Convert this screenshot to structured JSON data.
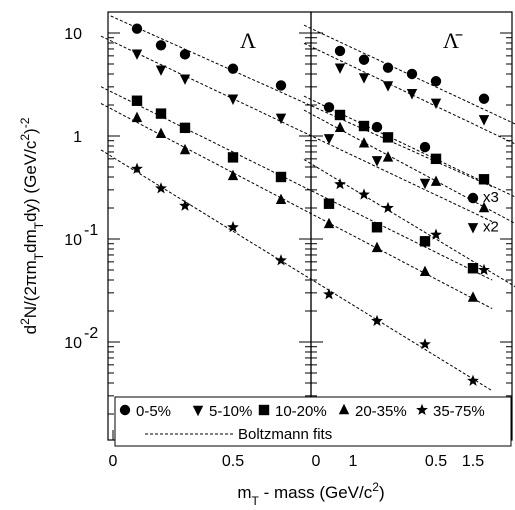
{
  "chart_data": {
    "type": "scatter",
    "xlabel": "m_T - mass (GeV/c^2)",
    "ylabel": "d^2N/(2πm_Tdm_Tdy) (GeV/c^2)^-2",
    "ylim": [
      0.0035,
      15
    ],
    "y_scale": "log",
    "x_ticks": [
      "0",
      "0.5",
      "1",
      "1.5"
    ],
    "y_ticks": [
      {
        "mantissa": "10",
        "exp": "",
        "value": 10
      },
      {
        "mantissa": "1",
        "exp": "",
        "value": 1
      },
      {
        "mantissa": "10",
        "exp": "-1",
        "value": 0.1
      },
      {
        "mantissa": "10",
        "exp": "-2",
        "value": 0.01
      }
    ],
    "legend": {
      "entries": [
        "0-5%",
        "5-10%",
        "10-20%",
        "20-35%",
        "35-75%"
      ],
      "fit_label": "Boltzmann fits",
      "placement": "bottom"
    },
    "panels": [
      {
        "title": "Λ",
        "series": [
          {
            "name": "0-5%",
            "marker": "circle",
            "scale_label": "x3",
            "x": [
              0.1,
              0.2,
              0.3,
              0.5,
              0.7,
              0.9,
              1.1,
              1.3,
              1.5
            ],
            "y": [
              11,
              7.6,
              6.2,
              4.5,
              3.1,
              1.9,
              1.22,
              0.78,
              0.25
            ]
          },
          {
            "name": "5-10%",
            "marker": "triangle-down",
            "scale_label": "x2",
            "x": [
              0.1,
              0.2,
              0.3,
              0.5,
              0.7,
              0.9,
              1.1,
              1.3,
              1.5
            ],
            "y": [
              6.3,
              4.4,
              3.6,
              2.3,
              1.5,
              0.95,
              0.58,
              0.35,
              0.13
            ]
          },
          {
            "name": "10-20%",
            "marker": "square",
            "scale_label": "",
            "x": [
              0.1,
              0.2,
              0.3,
              0.5,
              0.7,
              0.9,
              1.1,
              1.3,
              1.5
            ],
            "y": [
              2.2,
              1.65,
              1.2,
              0.62,
              0.4,
              0.22,
              0.13,
              0.095,
              0.052
            ]
          },
          {
            "name": "20-35%",
            "marker": "triangle-up",
            "scale_label": "",
            "x": [
              0.1,
              0.2,
              0.3,
              0.5,
              0.7,
              0.9,
              1.1,
              1.3,
              1.5
            ],
            "y": [
              1.5,
              1.05,
              0.73,
              0.41,
              0.24,
              0.14,
              0.082,
              0.048,
              0.027
            ]
          },
          {
            "name": "35-75%",
            "marker": "star",
            "scale_label": "",
            "x": [
              0.1,
              0.2,
              0.3,
              0.5,
              0.7,
              0.9,
              1.1,
              1.3,
              1.5
            ],
            "y": [
              0.48,
              0.31,
              0.21,
              0.13,
              0.062,
              0.029,
              0.016,
              0.0095,
              0.0042
            ]
          }
        ]
      },
      {
        "title": "Λ̄",
        "series": [
          {
            "name": "0-5%",
            "marker": "circle",
            "scale_label": "x3",
            "x": [
              0.1,
              0.2,
              0.3,
              0.4,
              0.5,
              0.7,
              0.9,
              1.1,
              1.3,
              1.5
            ],
            "y": [
              6.7,
              5.5,
              4.6,
              4.0,
              3.4,
              2.3,
              1.45,
              0.8,
              0.31,
              0.2
            ]
          },
          {
            "name": "5-10%",
            "marker": "triangle-down",
            "scale_label": "x2",
            "x": [
              0.1,
              0.2,
              0.3,
              0.4,
              0.5,
              0.7,
              0.9,
              1.1,
              1.3,
              1.5
            ],
            "y": [
              4.6,
              3.7,
              3.1,
              2.6,
              2.1,
              1.45,
              0.9,
              0.48,
              0.2,
              0.13
            ]
          },
          {
            "name": "10-20%",
            "marker": "square",
            "scale_label": "",
            "x": [
              0.1,
              0.2,
              0.3,
              0.5,
              0.7,
              0.9,
              1.1,
              1.3,
              1.5
            ],
            "y": [
              1.6,
              1.25,
              0.97,
              0.6,
              0.38,
              0.23,
              0.13,
              0.08,
              0.041
            ]
          },
          {
            "name": "20-35%",
            "marker": "triangle-up",
            "scale_label": "",
            "x": [
              0.1,
              0.2,
              0.3,
              0.5,
              0.7,
              0.9,
              1.1,
              1.3,
              1.5
            ],
            "y": [
              1.2,
              0.85,
              0.62,
              0.36,
              0.2,
              0.12,
              0.07,
              0.04,
              0.018
            ]
          },
          {
            "name": "35-75%",
            "marker": "star",
            "scale_label": "",
            "x": [
              0.1,
              0.2,
              0.3,
              0.5,
              0.7,
              0.9,
              1.1,
              1.3,
              1.5
            ],
            "y": [
              0.34,
              0.27,
              0.2,
              0.11,
              0.05,
              0.028,
              0.013,
              0.0068,
              0.0045
            ]
          }
        ]
      }
    ]
  }
}
